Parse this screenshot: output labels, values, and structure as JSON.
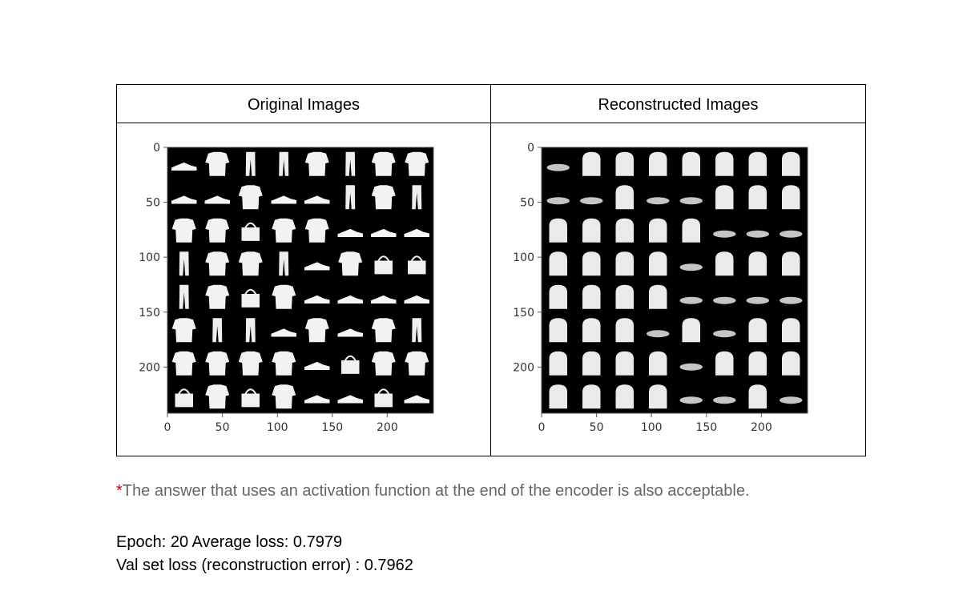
{
  "table": {
    "left_header": "Original Images",
    "right_header": "Reconstructed Images"
  },
  "plots": {
    "x_ticks": [
      "0",
      "50",
      "100",
      "150",
      "200"
    ],
    "y_ticks": [
      "0",
      "50",
      "100",
      "150",
      "200"
    ],
    "x_tick_values": [
      0,
      50,
      100,
      150,
      200
    ],
    "y_tick_values": [
      0,
      50,
      100,
      150,
      200
    ],
    "axis_range": [
      0,
      242
    ],
    "grid_cells": "8x8",
    "original_description_hidden": true
  },
  "note": {
    "star": "*",
    "text": "The answer that uses an activation function at the end of the encoder is also acceptable."
  },
  "stats": {
    "line1": "Epoch: 20 Average loss: 0.7979",
    "line2": "Val set loss (reconstruction error) : 0.7962"
  }
}
